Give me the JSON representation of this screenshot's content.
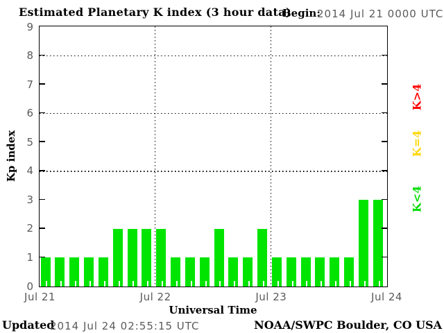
{
  "header": {
    "title": "Estimated Planetary K index (3 hour data)",
    "begin_label": "Begin:",
    "begin_value": "2014 Jul 21 0000 UTC"
  },
  "chart_data": {
    "type": "bar",
    "title": "Estimated Planetary K index (3 hour data)",
    "ylabel": "Kp index",
    "xlabel": "Universal Time",
    "y_min": 0,
    "y_max": 9,
    "y_tick_labels": [
      "0",
      "1",
      "2",
      "3",
      "4",
      "5",
      "6",
      "7",
      "8",
      "9"
    ],
    "y_gridlines": [
      4,
      6,
      8
    ],
    "x_tick_labels": [
      "Jul 21",
      "Jul 22",
      "Jul 23",
      "Jul 24"
    ],
    "bars_per_day": 8,
    "values": [
      1,
      1,
      1,
      1,
      1,
      2,
      2,
      2,
      2,
      1,
      1,
      1,
      2,
      1,
      1,
      2,
      1,
      1,
      1,
      1,
      1,
      1,
      3,
      3
    ],
    "bar_color": "#00e400",
    "legend": [
      {
        "label": "K>4",
        "color": "#ff0000"
      },
      {
        "label": "K=4",
        "color": "#ffd700"
      },
      {
        "label": "K<4",
        "color": "#00dd00"
      }
    ],
    "grid": "dotted",
    "legend_position": "right-rotated"
  },
  "footer": {
    "updated_label": "Updated",
    "updated_value": "2014 Jul 24 02:55:15 UTC",
    "org": "NOAA/SWPC Boulder, CO USA"
  },
  "colors": {
    "bar_green": "#00e400",
    "legend_red": "#ff0000",
    "legend_yellow": "#ffd700",
    "legend_green": "#00dd00",
    "muted_text": "#5a5a5a",
    "axis": "#000000"
  }
}
